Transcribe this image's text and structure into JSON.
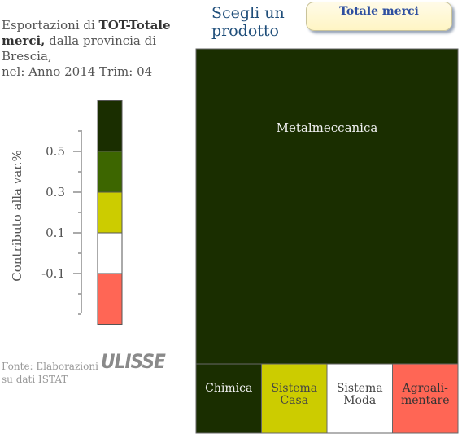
{
  "header": {
    "title_prefix": "Esportazioni di ",
    "title_product": "TOT-Totale merci,",
    "title_line2": " dalla provincia di Brescia,",
    "title_line3": "nel: Anno 2014 Trim: 04",
    "choose_label": "Scegli un prodotto",
    "product_button": "Totale merci"
  },
  "source": {
    "note": "Fonte: Elaborazioni su dati ISTAT",
    "logo_text": "ULISSE"
  },
  "colors": {
    "dark_green": "#1a2e00",
    "mid_green": "#3d6600",
    "yellow_green": "#cccc00",
    "white": "#ffffff",
    "red": "#ff6655"
  },
  "chart_data": [
    {
      "type": "legend-scale",
      "ylabel": "Contributo alla var.%",
      "tick_labels": [
        "0.5",
        "0.3",
        "0.1",
        "-0.1"
      ],
      "ticks": [
        0.5,
        0.3,
        0.1,
        -0.1
      ],
      "ylim": [
        -0.3,
        0.7
      ],
      "bands": [
        {
          "from": 0.5,
          "to": 0.75,
          "color": "#1a2e00"
        },
        {
          "from": 0.3,
          "to": 0.5,
          "color": "#3d6600"
        },
        {
          "from": 0.1,
          "to": 0.3,
          "color": "#cccc00"
        },
        {
          "from": -0.1,
          "to": 0.1,
          "color": "#ffffff"
        },
        {
          "from": -0.35,
          "to": -0.1,
          "color": "#ff6655"
        }
      ]
    },
    {
      "type": "treemap",
      "items": [
        {
          "label": "Metalmeccanica",
          "color": "#1a2e00",
          "text_color": "#f0f0f0",
          "share": 0.82
        },
        {
          "label": "Chimica",
          "color": "#1a2e00",
          "text_color": "#f0f0f0",
          "share": 0.045
        },
        {
          "label": "Sistema Casa",
          "color": "#cccc00",
          "text_color": "#444444",
          "share": 0.045
        },
        {
          "label": "Sistema Moda",
          "color": "#ffffff",
          "text_color": "#444444",
          "share": 0.045
        },
        {
          "label": "Agroali-mentare",
          "color": "#ff6655",
          "text_color": "#333333",
          "share": 0.045
        }
      ]
    }
  ]
}
